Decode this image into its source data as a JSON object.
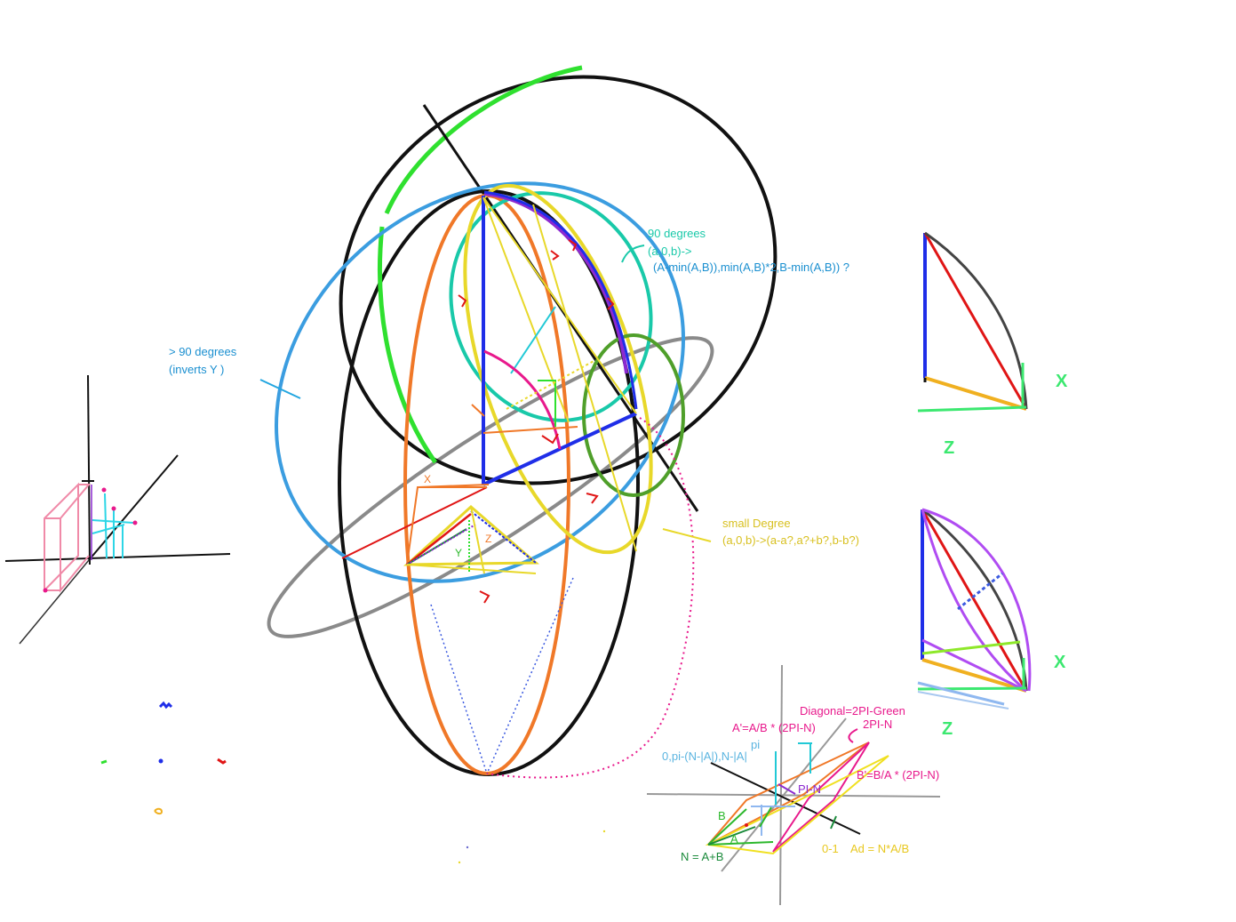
{
  "colors": {
    "black": "#111111",
    "blue": "#1f2ee8",
    "sky": "#3b9de0",
    "cyan": "#22c9d6",
    "teal": "#19c9a9",
    "green": "#2fe02f",
    "darkgreen": "#4f9f2a",
    "orange": "#f07828",
    "yellow": "#e8d82a",
    "purple": "#8c2ad0",
    "violet": "#b04cf2",
    "red": "#e01515",
    "magenta": "#e8198c",
    "gray": "#8a8a8a",
    "pink": "#f08aa8",
    "gold": "#f0b020",
    "limegreen": "#3ce870"
  },
  "annotations": {
    "ninety_title": "90 degrees",
    "ninety_line1": "(a,0,b)->",
    "ninety_line2": "(A-min(A,B)),min(A,B)*2,B-min(A,B)) ?",
    "over90_line1": "> 90 degrees",
    "over90_line2": "(inverts Y )",
    "small_title": "small Degree",
    "small_formula": "(a,0,b)->(a-a?,a?+b?,b-b?)",
    "tri_x": "X",
    "tri_y": "Y",
    "tri_z": "Z"
  },
  "side_diagrams": {
    "top_x": "X",
    "top_z": "Z",
    "bottom_x": "X",
    "bottom_z": "Z"
  },
  "formula_diagram": {
    "diagonal": "Diagonal=2PI-Green",
    "two_pi_n": "2PI-N",
    "a_prime": "A'=A/B * (2PI-N)",
    "pi": "pi",
    "zero_pi": "0,pi-(N-|A|),N-|A|",
    "pi_n": "PI-N",
    "b_prime": "B'=B/A * (2PI-N)",
    "b": "B",
    "a": "A",
    "n_eq": "N = A+B",
    "zero_one": "0-1",
    "ad": "Ad = N*A/B"
  }
}
